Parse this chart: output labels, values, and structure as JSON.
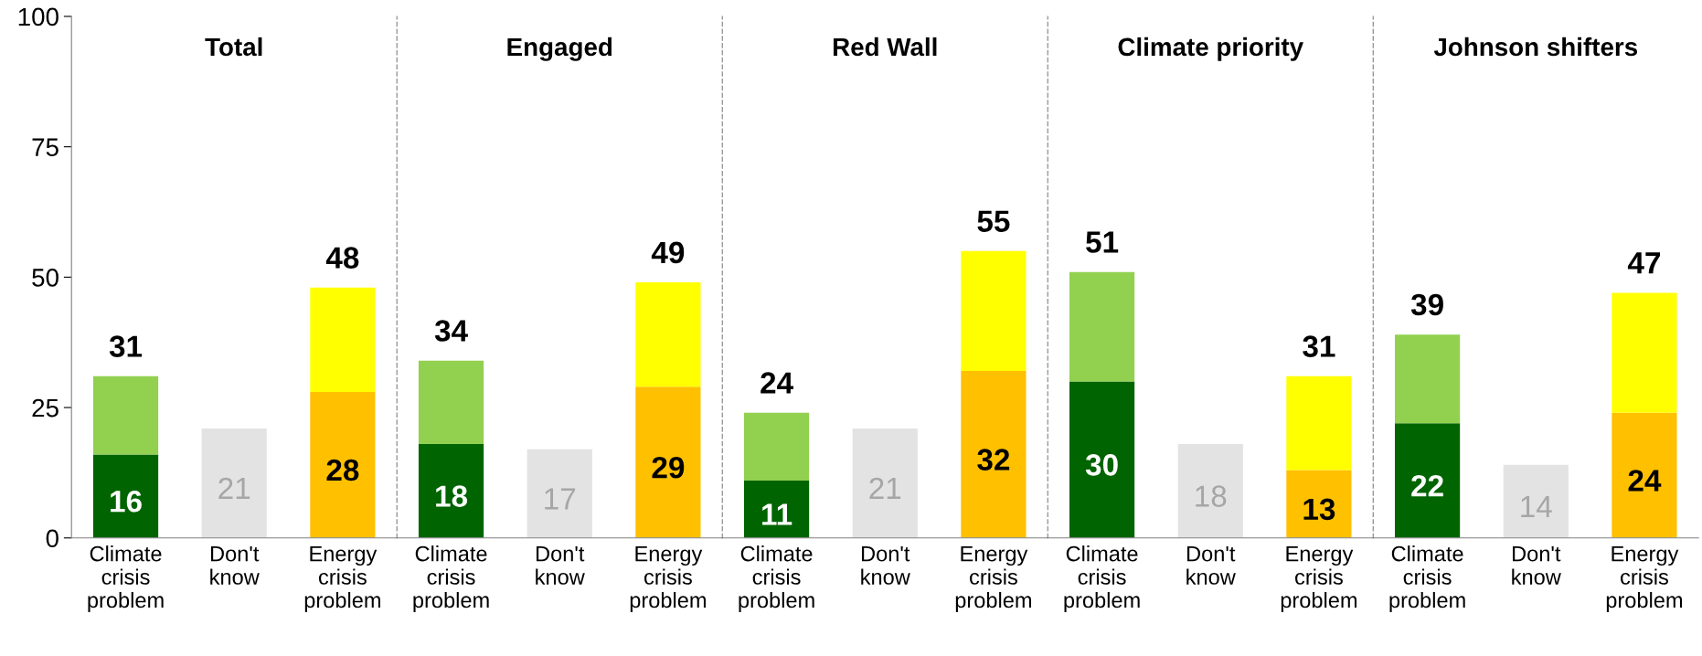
{
  "chart_data": [
    {
      "type": "bar",
      "title": "Total",
      "stacked": true,
      "categories": [
        "Climate crisis problem",
        "Don't know",
        "Energy crisis problem"
      ],
      "ylim": [
        0,
        100
      ],
      "yticks": [
        0,
        25,
        50,
        75,
        100
      ],
      "grid": false,
      "legend": false,
      "totals": [
        "31",
        null,
        "48"
      ],
      "series": [
        {
          "colors": [
            "#006400",
            "#e3e3e3",
            "#ffc000"
          ],
          "values": [
            16,
            21,
            28
          ],
          "value_labels": [
            "16",
            "21",
            "28"
          ]
        },
        {
          "colors": [
            "#92d050",
            null,
            "#ffff00"
          ],
          "values": [
            15,
            null,
            20
          ]
        }
      ]
    },
    {
      "type": "bar",
      "title": "Engaged",
      "stacked": true,
      "categories": [
        "Climate crisis problem",
        "Don't know",
        "Energy crisis problem"
      ],
      "ylim": [
        0,
        100
      ],
      "yticks": [
        0,
        25,
        50,
        75,
        100
      ],
      "tick_labels": "x",
      "grid": false,
      "legend": false,
      "totals": [
        "34",
        null,
        "49"
      ],
      "series": [
        {
          "colors": [
            "#006400",
            "#e3e3e3",
            "#ffc000"
          ],
          "values": [
            18,
            17,
            29
          ],
          "value_labels": [
            "18",
            "17",
            "29"
          ]
        },
        {
          "colors": [
            "#92d050",
            null,
            "#ffff00"
          ],
          "values": [
            16,
            null,
            20
          ]
        }
      ]
    },
    {
      "type": "bar",
      "title": "Red Wall",
      "stacked": true,
      "categories": [
        "Climate crisis problem",
        "Don't know",
        "Energy crisis problem"
      ],
      "ylim": [
        0,
        100
      ],
      "yticks": [
        0,
        25,
        50,
        75,
        100
      ],
      "tick_labels": "x",
      "grid": false,
      "legend": false,
      "totals": [
        "24",
        null,
        "55"
      ],
      "series": [
        {
          "colors": [
            "#006400",
            "#e3e3e3",
            "#ffc000"
          ],
          "values": [
            11,
            21,
            32
          ],
          "value_labels": [
            "11",
            "21",
            "32"
          ]
        },
        {
          "colors": [
            "#92d050",
            null,
            "#ffff00"
          ],
          "values": [
            13,
            null,
            23
          ]
        }
      ]
    },
    {
      "type": "bar",
      "title": "Climate priority",
      "stacked": true,
      "categories": [
        "Climate crisis problem",
        "Don't know",
        "Energy crisis problem"
      ],
      "ylim": [
        0,
        100
      ],
      "yticks": [
        0,
        25,
        50,
        75,
        100
      ],
      "tick_labels": "x",
      "grid": false,
      "legend": false,
      "totals": [
        "51",
        null,
        "31"
      ],
      "series": [
        {
          "colors": [
            "#006400",
            "#e3e3e3",
            "#ffc000"
          ],
          "values": [
            30,
            18,
            13
          ],
          "value_labels": [
            "30",
            "18",
            "13"
          ]
        },
        {
          "colors": [
            "#92d050",
            null,
            "#ffff00"
          ],
          "values": [
            21,
            null,
            18
          ]
        }
      ]
    },
    {
      "type": "bar",
      "title": "Johnson shifters",
      "stacked": true,
      "categories": [
        "Climate crisis problem",
        "Don't know",
        "Energy crisis problem"
      ],
      "ylim": [
        0,
        100
      ],
      "yticks": [
        0,
        25,
        50,
        75,
        100
      ],
      "tick_labels": "x",
      "grid": false,
      "legend": false,
      "totals": [
        "39",
        null,
        "47"
      ],
      "series": [
        {
          "colors": [
            "#006400",
            "#e3e3e3",
            "#ffc000"
          ],
          "values": [
            22,
            14,
            24
          ],
          "value_labels": [
            "22",
            "14",
            "24"
          ]
        },
        {
          "colors": [
            "#92d050",
            null,
            "#ffff00"
          ],
          "values": [
            17,
            null,
            23
          ]
        }
      ]
    }
  ]
}
